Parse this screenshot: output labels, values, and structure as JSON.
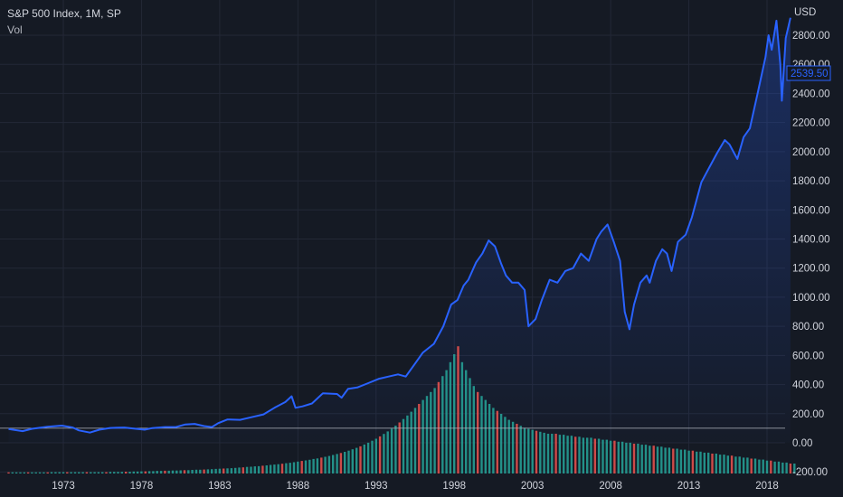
{
  "header": {
    "title": "S&P 500 Index, 1M, SP",
    "subtitle": "Vol",
    "currency": "USD",
    "current_price_label": "2539.50"
  },
  "colors": {
    "background": "#151a24",
    "grid": "#232836",
    "line": "#2962ff",
    "area_top": "#1f3b8a",
    "vol_up": "#26a69a",
    "vol_down": "#ef5350",
    "text": "#d1d4dc",
    "baseline": "#b2b5be"
  },
  "chart_data": {
    "type": "line",
    "title": "S&P 500 Index, 1M, SP",
    "ylabel": "USD",
    "ylim": [
      -200,
      2900
    ],
    "xlim": [
      1969.5,
      2019.5
    ],
    "grid": true,
    "y_ticks": [
      "2800.00",
      "2600.00",
      "2400.00",
      "2200.00",
      "2000.00",
      "1800.00",
      "1600.00",
      "1400.00",
      "1200.00",
      "1000.00",
      "800.00",
      "600.00",
      "400.00",
      "200.00",
      "0.00",
      "-200.00"
    ],
    "x_ticks": [
      "1973",
      "1978",
      "1983",
      "1988",
      "1993",
      "1998",
      "2003",
      "2008",
      "2013",
      "2018"
    ],
    "current_price": 2539.5,
    "series": [
      {
        "x": [
          1969.5,
          1970.4,
          1971.0,
          1972.0,
          1972.9,
          1973.6,
          1974.0,
          1974.7,
          1975.3,
          1976.0,
          1976.9,
          1977.5,
          1978.2,
          1978.7,
          1979.5,
          1980.2,
          1980.8,
          1981.4,
          1982.0,
          1982.5,
          1982.9,
          1983.5,
          1984.3,
          1985.0,
          1985.8,
          1986.5,
          1987.2,
          1987.6,
          1987.85,
          1988.3,
          1988.9,
          1989.6,
          1990.5,
          1990.8,
          1991.2,
          1991.8,
          1992.5,
          1993.2,
          1993.8,
          1994.4,
          1994.9,
          1995.5,
          1996.0,
          1996.7,
          1997.3,
          1997.8,
          1998.2,
          1998.6,
          1998.9,
          1999.4,
          1999.8,
          2000.2,
          2000.6,
          2001.0,
          2001.3,
          2001.7,
          2002.1,
          2002.5,
          2002.75,
          2003.2,
          2003.6,
          2004.1,
          2004.6,
          2005.1,
          2005.6,
          2006.1,
          2006.6,
          2007.1,
          2007.4,
          2007.8,
          2008.2,
          2008.6,
          2008.9,
          2009.2,
          2009.5,
          2009.9,
          2010.3,
          2010.5,
          2010.9,
          2011.3,
          2011.6,
          2011.9,
          2012.3,
          2012.8,
          2013.2,
          2013.8,
          2014.3,
          2014.8,
          2015.3,
          2015.6,
          2015.9,
          2016.1,
          2016.5,
          2016.9,
          2017.4,
          2017.9,
          2018.1,
          2018.3,
          2018.6,
          2018.85,
          2018.95,
          2019.2,
          2019.5
        ],
        "values": [
          95,
          80,
          96,
          110,
          118,
          105,
          85,
          70,
          90,
          102,
          105,
          98,
          90,
          101,
          108,
          108,
          126,
          130,
          115,
          108,
          135,
          160,
          158,
          175,
          195,
          240,
          280,
          320,
          240,
          250,
          270,
          340,
          335,
          310,
          370,
          380,
          410,
          440,
          455,
          470,
          455,
          545,
          620,
          680,
          800,
          950,
          980,
          1080,
          1120,
          1240,
          1300,
          1390,
          1350,
          1230,
          1150,
          1100,
          1100,
          1050,
          800,
          850,
          980,
          1120,
          1100,
          1180,
          1200,
          1300,
          1250,
          1400,
          1450,
          1500,
          1380,
          1250,
          900,
          780,
          950,
          1100,
          1150,
          1100,
          1250,
          1330,
          1300,
          1180,
          1380,
          1430,
          1550,
          1790,
          1890,
          1990,
          2080,
          2050,
          1990,
          1950,
          2100,
          2160,
          2400,
          2650,
          2800,
          2700,
          2900,
          2600,
          2350,
          2780,
          2920
        ]
      }
    ],
    "volume": {
      "x_start": 1969.5,
      "step": 0.25,
      "values": [
        6,
        6,
        6,
        6,
        6,
        6,
        6,
        6,
        6,
        6,
        6,
        7,
        7,
        7,
        7,
        7,
        7,
        7,
        7,
        7,
        7,
        7,
        7,
        7,
        7,
        7,
        8,
        8,
        8,
        8,
        9,
        9,
        10,
        10,
        11,
        11,
        12,
        12,
        13,
        13,
        14,
        14,
        15,
        15,
        16,
        17,
        17,
        18,
        19,
        19,
        20,
        21,
        22,
        23,
        24,
        25,
        26,
        27,
        28,
        30,
        31,
        33,
        34,
        36,
        37,
        39,
        41,
        43,
        45,
        47,
        49,
        52,
        54,
        57,
        60,
        63,
        66,
        69,
        73,
        76,
        80,
        84,
        88,
        93,
        98,
        103,
        109,
        115,
        122,
        129,
        137,
        146,
        155,
        165,
        175,
        187,
        199,
        212,
        226,
        241,
        257,
        274,
        292,
        311,
        330,
        350,
        370,
        390,
        410,
        430,
        460,
        490,
        520,
        560,
        600,
        640,
        560,
        520,
        480,
        440,
        410,
        390,
        370,
        350,
        330,
        315,
        300,
        285,
        270,
        260,
        250,
        240,
        230,
        225,
        220,
        215,
        210,
        205,
        200,
        200,
        200,
        195,
        195,
        190,
        190,
        185,
        185,
        180,
        180,
        180,
        175,
        175,
        170,
        170,
        165,
        165,
        160,
        160,
        155,
        155,
        150,
        150,
        145,
        145,
        140,
        140,
        135,
        135,
        130,
        130,
        125,
        125,
        120,
        120,
        115,
        115,
        110,
        110,
        105,
        105,
        100,
        100,
        95,
        95,
        90,
        90,
        85,
        85,
        80,
        80,
        75,
        75,
        70,
        70,
        65,
        65,
        60,
        60,
        55,
        55,
        50,
        50
      ]
    }
  }
}
